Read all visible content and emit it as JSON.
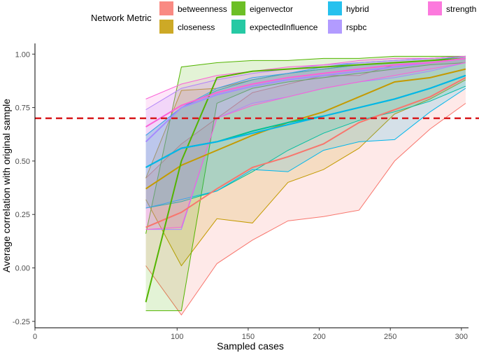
{
  "chart_data": {
    "type": "line",
    "title": "",
    "xlabel": "Sampled cases",
    "ylabel": "Average correlation with original sample",
    "xlim": [
      0,
      305
    ],
    "ylim": [
      -0.28,
      1.05
    ],
    "xticks": [
      0,
      100,
      150,
      200,
      250,
      300
    ],
    "yticks": [
      -0.25,
      0.0,
      0.25,
      0.5,
      0.75,
      1.0
    ],
    "ytick_labels": [
      "-0.25",
      "0.00",
      "0.25",
      "0.50",
      "0.75",
      "1.00"
    ],
    "grid": false,
    "legend": {
      "title": "Network Metric",
      "position": "top",
      "entries": [
        "betweenness",
        "closeness",
        "eigenvector",
        "expectedInfluence",
        "hybrid",
        "rspbc",
        "strength"
      ]
    },
    "reference_line": {
      "y": 0.7,
      "color": "#d7191c",
      "style": "dashed"
    },
    "x": [
      78,
      103,
      128,
      153,
      178,
      203,
      228,
      253,
      278,
      303
    ],
    "series": [
      {
        "name": "betweenness",
        "color": "#F8766D",
        "mean": [
          0.19,
          0.26,
          0.37,
          0.47,
          0.52,
          0.58,
          0.68,
          0.74,
          0.8,
          0.89
        ],
        "lower": [
          0.01,
          -0.22,
          0.02,
          0.13,
          0.22,
          0.24,
          0.27,
          0.5,
          0.65,
          0.77
        ],
        "upper": [
          0.42,
          0.58,
          0.7,
          0.82,
          0.86,
          0.9,
          0.9,
          0.95,
          0.96,
          0.98
        ]
      },
      {
        "name": "closeness",
        "color": "#C49A00",
        "mean": [
          0.37,
          0.48,
          0.55,
          0.62,
          0.68,
          0.73,
          0.8,
          0.87,
          0.89,
          0.93
        ],
        "lower": [
          0.32,
          0.01,
          0.23,
          0.21,
          0.4,
          0.46,
          0.56,
          0.72,
          0.79,
          0.88
        ],
        "upper": [
          0.42,
          0.83,
          0.84,
          0.88,
          0.91,
          0.93,
          0.95,
          0.96,
          0.97,
          0.99
        ]
      },
      {
        "name": "eigenvector",
        "color": "#53B400",
        "mean": [
          -0.16,
          0.5,
          0.89,
          0.92,
          0.93,
          0.94,
          0.95,
          0.96,
          0.97,
          0.98
        ],
        "lower": [
          -0.2,
          -0.2,
          0.77,
          0.84,
          0.87,
          0.89,
          0.91,
          0.93,
          0.95,
          0.96
        ],
        "upper": [
          0.16,
          0.94,
          0.96,
          0.97,
          0.97,
          0.98,
          0.98,
          0.99,
          0.99,
          0.99
        ]
      },
      {
        "name": "expectedInfluence",
        "color": "#00C094",
        "mean": [
          0.47,
          0.56,
          0.59,
          0.64,
          0.68,
          0.71,
          0.75,
          0.79,
          0.84,
          0.9
        ],
        "lower": [
          0.28,
          0.31,
          0.36,
          0.45,
          0.55,
          0.63,
          0.69,
          0.73,
          0.78,
          0.85
        ],
        "upper": [
          0.62,
          0.75,
          0.83,
          0.88,
          0.91,
          0.93,
          0.95,
          0.96,
          0.97,
          0.99
        ]
      },
      {
        "name": "hybrid",
        "color": "#00B6EB",
        "mean": [
          0.47,
          0.56,
          0.59,
          0.63,
          0.67,
          0.71,
          0.75,
          0.79,
          0.84,
          0.9
        ],
        "lower": [
          0.28,
          0.32,
          0.36,
          0.46,
          0.45,
          0.55,
          0.59,
          0.6,
          0.73,
          0.84
        ],
        "upper": [
          0.62,
          0.75,
          0.84,
          0.89,
          0.91,
          0.94,
          0.96,
          0.97,
          0.98,
          0.99
        ]
      },
      {
        "name": "rspbc",
        "color": "#A58AFF",
        "mean": [
          0.59,
          0.75,
          0.81,
          0.85,
          0.88,
          0.9,
          0.92,
          0.94,
          0.96,
          0.98
        ],
        "lower": [
          0.18,
          0.18,
          0.7,
          0.77,
          0.8,
          0.84,
          0.87,
          0.89,
          0.92,
          0.96
        ],
        "upper": [
          0.74,
          0.84,
          0.88,
          0.91,
          0.93,
          0.95,
          0.96,
          0.97,
          0.98,
          0.99
        ]
      },
      {
        "name": "strength",
        "color": "#FB61D7",
        "mean": [
          0.66,
          0.76,
          0.82,
          0.86,
          0.89,
          0.91,
          0.93,
          0.95,
          0.96,
          0.98
        ],
        "lower": [
          0.18,
          0.19,
          0.7,
          0.76,
          0.8,
          0.84,
          0.87,
          0.9,
          0.93,
          0.96
        ],
        "upper": [
          0.79,
          0.86,
          0.9,
          0.92,
          0.94,
          0.95,
          0.97,
          0.98,
          0.98,
          0.99
        ]
      }
    ]
  }
}
